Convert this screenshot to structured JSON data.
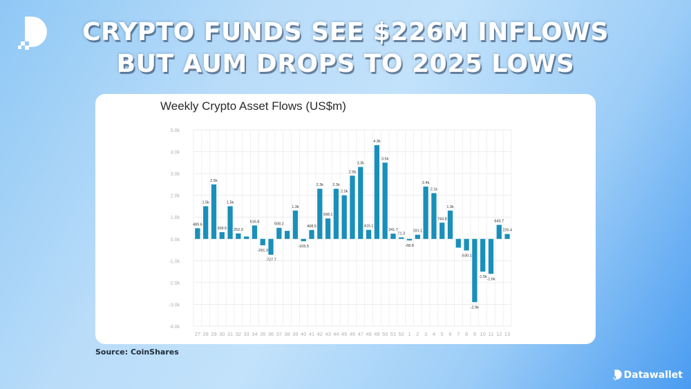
{
  "headline": {
    "line1": "CRYPTO FUNDS SEE $226M INFLOWS",
    "line2": "BUT AUM DROPS TO 2025 LOWS"
  },
  "source": "Source: CoinShares",
  "brand": {
    "name": "Datawallet",
    "icon": "datawallet-logo-icon"
  },
  "colors": {
    "bar": "#1a8fba",
    "grid": "#ececec",
    "axis_text": "#b0b0b0",
    "label_text": "#333333"
  },
  "chart_data": {
    "type": "bar",
    "title": "Weekly Crypto Asset Flows (US$m)",
    "xlabel": "",
    "ylabel": "",
    "ylim": [
      -4000,
      5000
    ],
    "yticks": [
      5000,
      4000,
      3000,
      2000,
      1000,
      0,
      -1000,
      -2000,
      -3000,
      -4000
    ],
    "ytick_labels": [
      "5.0k",
      "4.0k",
      "3.0k",
      "2.0k",
      "1.0k",
      "0.0k",
      "-1.0k",
      "-2.0k",
      "-3.0k",
      "-4.0k"
    ],
    "grid": true,
    "legend": null,
    "categories": [
      "27",
      "28",
      "29",
      "30",
      "31",
      "32",
      "33",
      "34",
      "35",
      "36",
      "37",
      "38",
      "39",
      "40",
      "41",
      "42",
      "43",
      "44",
      "45",
      "46",
      "47",
      "48",
      "49",
      "50",
      "51",
      "52",
      "1",
      "2",
      "3",
      "4",
      "5",
      "6",
      "7",
      "8",
      "9",
      "10",
      "11",
      "12",
      "13"
    ],
    "values": [
      489.6,
      1500,
      2500,
      309.5,
      1500,
      252.0,
      110,
      616.8,
      -291.3,
      -727.7,
      508.2,
      370,
      1300,
      -105.5,
      408.5,
      2300,
      938.1,
      2300,
      2000,
      2900,
      3300,
      415.1,
      4300,
      3500,
      241.7,
      71.3,
      -68.8,
      191.1,
      2400,
      2100,
      744.8,
      1300,
      -400,
      -530.1,
      -2900,
      -1500,
      -1600,
      643.7,
      226.4
    ],
    "data_labels": [
      "489.6",
      "1.5k",
      "2.5k",
      "309.5",
      "1.5k",
      "252.0",
      "",
      "616.8",
      "-291.3",
      "-727.7",
      "508.2",
      "",
      "1.3k",
      "-105.5",
      "408.5",
      "2.3k",
      "938.1",
      "2.3k",
      "2.0k",
      "2.9k",
      "3.3k",
      "415.1",
      "4.3k",
      "3.5k",
      "241.7",
      "71.3",
      "-68.8",
      "191.1",
      "2.4k",
      "2.1k",
      "744.8",
      "1.3k",
      "",
      "-530.1",
      "-2.9k",
      "-1.5k",
      "-1.6k",
      "643.7",
      "226.4"
    ]
  }
}
